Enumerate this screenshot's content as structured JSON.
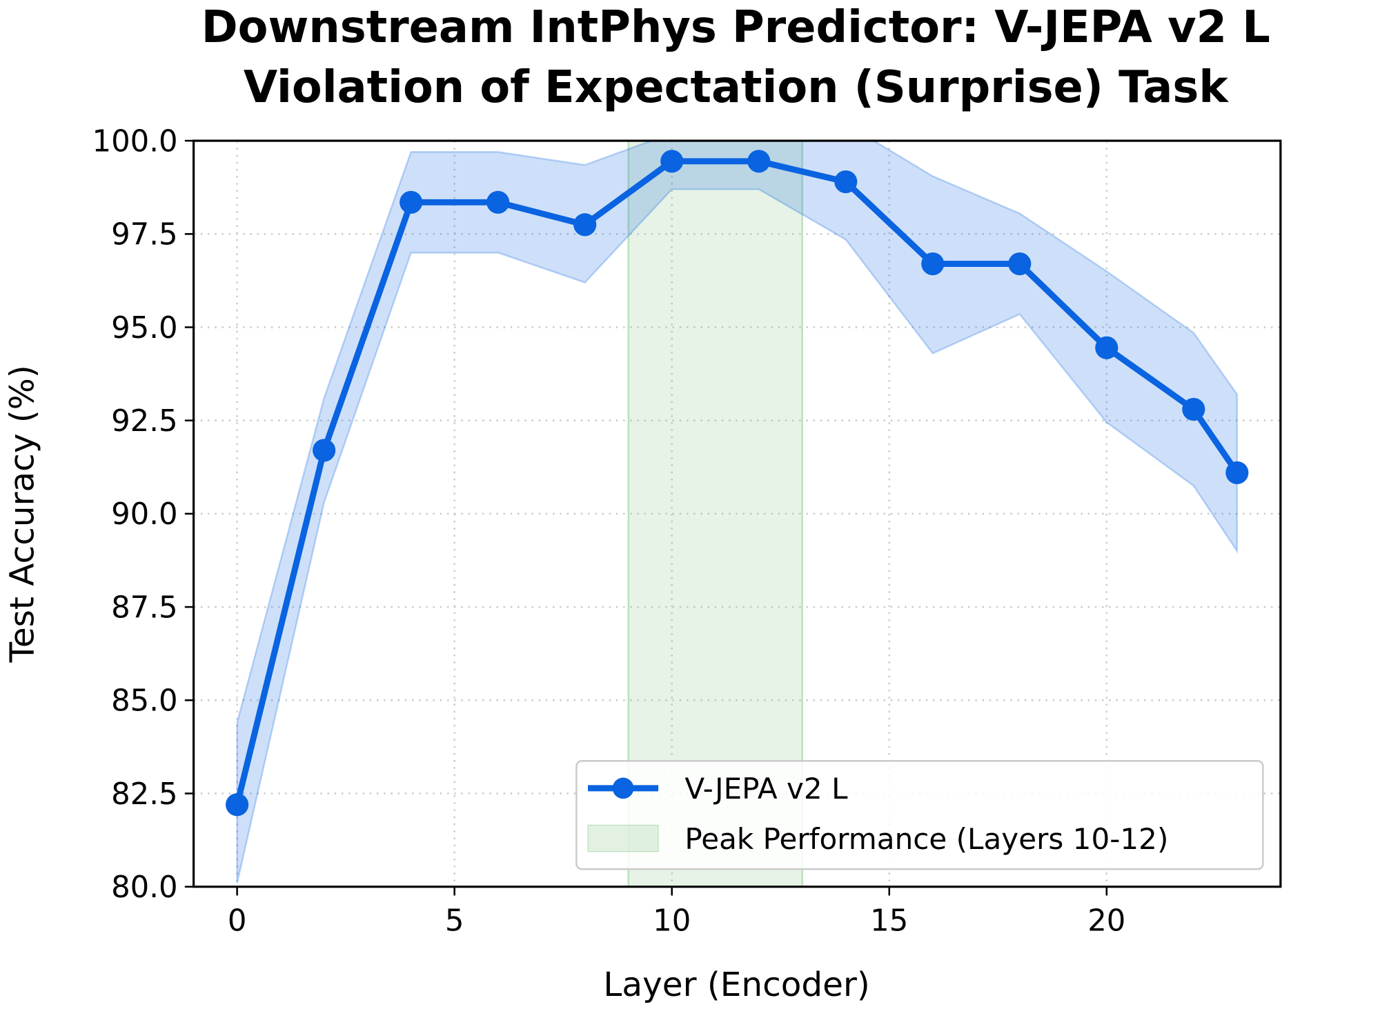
{
  "chart_data": {
    "type": "line",
    "title_lines": [
      "Downstream IntPhys Predictor: V-JEPA v2 L",
      "Violation of Expectation (Surprise) Task"
    ],
    "xlabel": "Layer (Encoder)",
    "ylabel": "Test Accuracy (%)",
    "xlim": [
      -1,
      24
    ],
    "ylim": [
      80,
      100
    ],
    "xticks": [
      0,
      5,
      10,
      15,
      20
    ],
    "xtick_labels": [
      "0",
      "5",
      "10",
      "15",
      "20"
    ],
    "yticks": [
      80,
      82.5,
      85,
      87.5,
      90,
      92.5,
      95,
      97.5,
      100
    ],
    "ytick_labels": [
      "80.0",
      "82.5",
      "85.0",
      "87.5",
      "90.0",
      "92.5",
      "95.0",
      "97.5",
      "100.0"
    ],
    "grid": true,
    "legend_position": "lower-right",
    "series": [
      {
        "name": "V-JEPA v2 L",
        "color": "#0a63e0",
        "x": [
          0,
          2,
          4,
          6,
          8,
          10,
          12,
          14,
          16,
          18,
          20,
          22,
          23
        ],
        "y": [
          82.2,
          91.7,
          98.35,
          98.35,
          97.75,
          99.45,
          99.45,
          98.9,
          96.7,
          96.7,
          94.45,
          92.8,
          91.1
        ],
        "lower": [
          80.1,
          90.3,
          97.0,
          97.0,
          96.2,
          98.7,
          98.7,
          97.35,
          94.3,
          95.35,
          92.45,
          90.75,
          89.0
        ],
        "upper": [
          84.4,
          93.1,
          99.7,
          99.7,
          99.35,
          100.2,
          100.2,
          100.45,
          99.05,
          98.05,
          96.5,
          94.85,
          93.2
        ]
      }
    ],
    "shaded_region": {
      "name": "Peak Performance (Layers 10-12)",
      "x_range": [
        9,
        13
      ],
      "color": "#8cc98c"
    }
  }
}
